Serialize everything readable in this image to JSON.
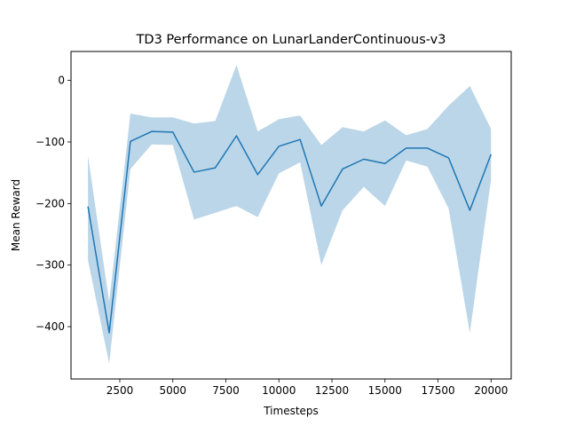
{
  "chart_data": {
    "type": "line",
    "title": "TD3 Performance on LunarLanderContinuous-v3",
    "xlabel": "Timesteps",
    "ylabel": "Mean Reward",
    "xlim": [
      200,
      20950
    ],
    "ylim": [
      -485,
      47
    ],
    "xticks": [
      2500,
      5000,
      7500,
      10000,
      12500,
      15000,
      17500,
      20000
    ],
    "xtick_labels": [
      "2500",
      "5000",
      "7500",
      "10000",
      "12500",
      "15000",
      "17500",
      "20000"
    ],
    "yticks": [
      0,
      -100,
      -200,
      -300,
      -400
    ],
    "ytick_labels": [
      "0",
      "−100",
      "−200",
      "−300",
      "−400"
    ],
    "grid": false,
    "series": [
      {
        "color": "#1f77b4",
        "band_color": "#1f77b4",
        "band_opacity": 0.3,
        "x": [
          1000,
          2000,
          3000,
          4000,
          5000,
          6000,
          7000,
          8000,
          9000,
          10000,
          11000,
          12000,
          13000,
          14000,
          15000,
          16000,
          17000,
          18000,
          19000,
          20000
        ],
        "y": [
          -205,
          -410,
          -99,
          -83,
          -84,
          -149,
          -142,
          -90,
          -153,
          -107,
          -96,
          -204,
          -144,
          -128,
          -135,
          -110,
          -110,
          -126,
          -211,
          -120
        ],
        "upper": [
          -122,
          -360,
          -54,
          -60,
          -60,
          -70,
          -66,
          25,
          -83,
          -63,
          -57,
          -105,
          -76,
          -83,
          -65,
          -89,
          -79,
          -41,
          -9,
          -79
        ],
        "lower": [
          -292,
          -460,
          -144,
          -104,
          -105,
          -226,
          -215,
          -204,
          -222,
          -151,
          -133,
          -300,
          -211,
          -173,
          -204,
          -130,
          -140,
          -208,
          -410,
          -161
        ]
      }
    ]
  }
}
